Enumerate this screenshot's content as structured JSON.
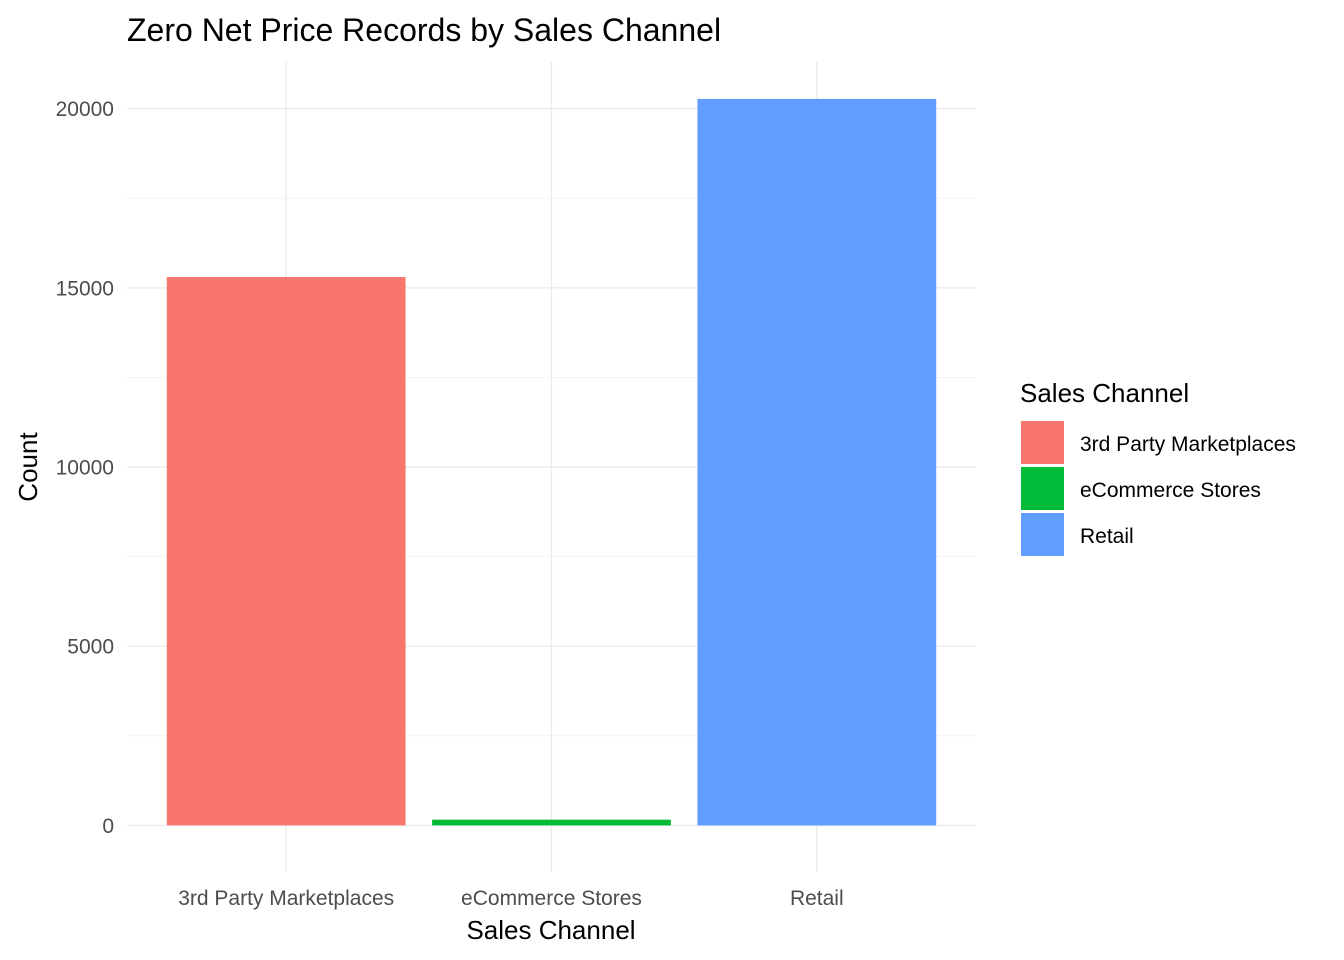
{
  "chart_data": {
    "type": "bar",
    "title": "Zero Net Price Records by Sales Channel",
    "xlabel": "Sales Channel",
    "ylabel": "Count",
    "categories": [
      "3rd Party Marketplaces",
      "eCommerce Stores",
      "Retail"
    ],
    "values": [
      15300,
      160,
      20270
    ],
    "colors": [
      "#F8766D",
      "#00BA38",
      "#619CFF"
    ],
    "ylim": [
      -1300,
      21300
    ],
    "yticks": [
      0,
      5000,
      10000,
      15000,
      20000
    ],
    "ytick_labels": [
      "0",
      "5000",
      "10000",
      "15000",
      "20000"
    ],
    "grid": true,
    "legend": {
      "title": "Sales Channel",
      "position": "right",
      "entries": [
        "3rd Party Marketplaces",
        "eCommerce Stores",
        "Retail"
      ]
    }
  }
}
